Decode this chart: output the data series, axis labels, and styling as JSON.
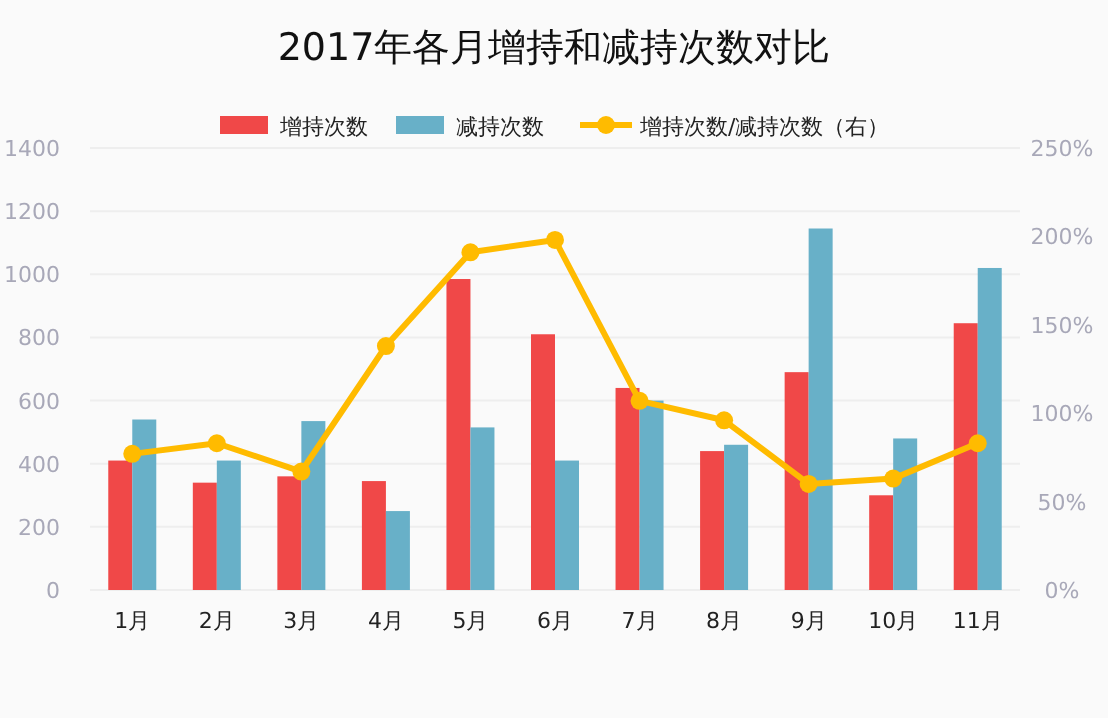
{
  "chart_data": {
    "type": "bar",
    "title": "2017年各月增持和减持次数对比",
    "categories": [
      "1月",
      "2月",
      "3月",
      "4月",
      "5月",
      "6月",
      "7月",
      "8月",
      "9月",
      "10月",
      "11月"
    ],
    "series": [
      {
        "name": "增持次数",
        "color": "#f04848",
        "values": [
          410,
          340,
          360,
          345,
          985,
          810,
          640,
          440,
          690,
          300,
          845
        ]
      },
      {
        "name": "减持次数",
        "color": "#68b0c8",
        "values": [
          540,
          410,
          535,
          250,
          515,
          410,
          600,
          460,
          1145,
          480,
          1020
        ]
      },
      {
        "name": "增持次数/减持次数（右）",
        "type": "line",
        "axis": "y2",
        "color": "#ffbb00",
        "marker": "circle",
        "values": [
          77,
          83,
          67,
          138,
          191,
          198,
          107,
          96,
          60,
          63,
          83
        ]
      }
    ],
    "ylim": [
      0,
      1400
    ],
    "yticks": [
      0,
      200,
      400,
      600,
      800,
      1000,
      1200,
      1400
    ],
    "y2lim": [
      0,
      250
    ],
    "y2ticks": [
      {
        "value": 0,
        "label": "0%"
      },
      {
        "value": 50,
        "label": "50%"
      },
      {
        "value": 100,
        "label": "100%"
      },
      {
        "value": 150,
        "label": "150%"
      },
      {
        "value": 200,
        "label": "200%"
      },
      {
        "value": 250,
        "label": "250%"
      }
    ],
    "grid": "y",
    "legend": "top"
  }
}
